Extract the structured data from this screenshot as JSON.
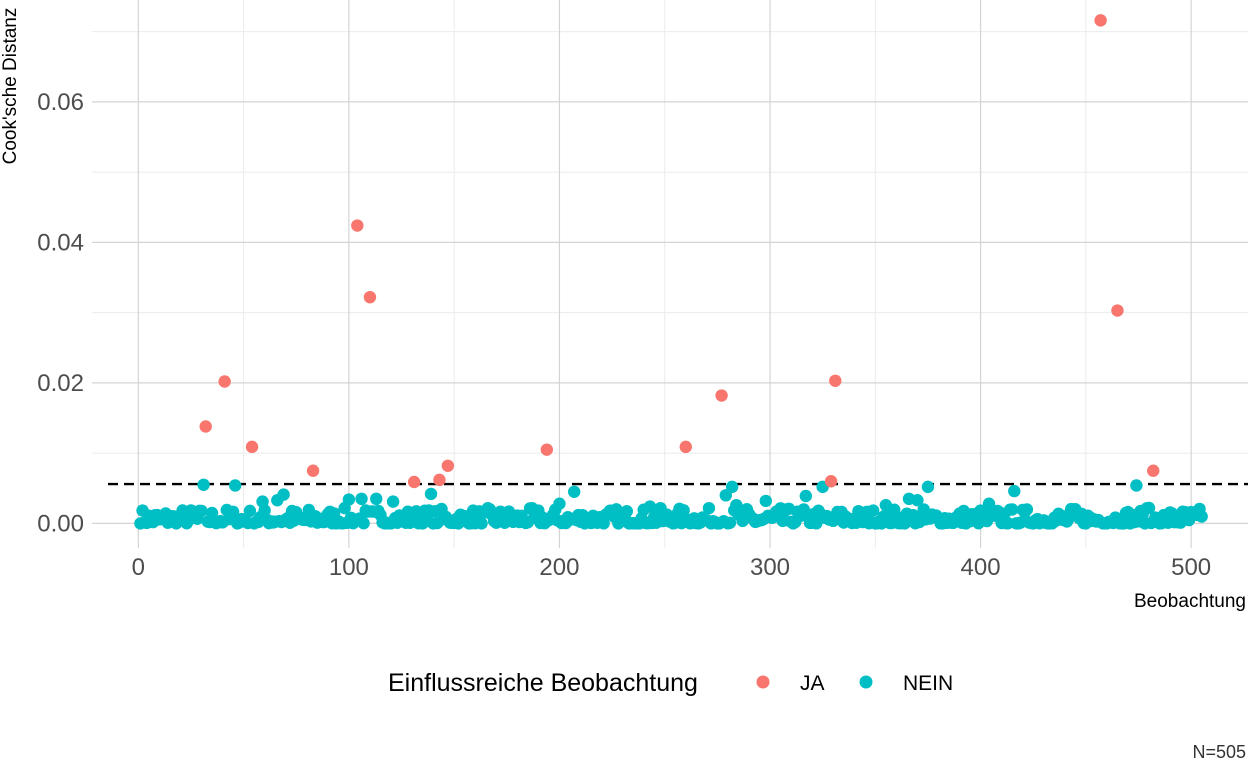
{
  "chart_data": {
    "type": "scatter",
    "xlabel": "Beobachtung",
    "ylabel": "Cook'sche Distanz",
    "xlim": [
      -22,
      527
    ],
    "ylim": [
      -0.0035,
      0.0745
    ],
    "x_ticks": [
      0,
      100,
      200,
      300,
      400,
      500
    ],
    "x_tick_labels": [
      "0",
      "100",
      "200",
      "300",
      "400",
      "500"
    ],
    "y_ticks": [
      0,
      0.02,
      0.04,
      0.06
    ],
    "y_tick_labels": [
      "0.00",
      "0.02",
      "0.04",
      "0.06"
    ],
    "grid": true,
    "threshold": 0.0056,
    "threshold_style": "dashed",
    "legend": {
      "title": "Einflussreiche Beobachtung",
      "placement": "bottom",
      "entries": [
        {
          "label": "JA",
          "color": "#F8766D"
        },
        {
          "label": "NEIN",
          "color": "#00BFC4"
        }
      ]
    },
    "caption": "N=505",
    "series": [
      {
        "name": "JA",
        "color": "#F8766D",
        "points": [
          [
            32,
            0.0138
          ],
          [
            41,
            0.0202
          ],
          [
            54,
            0.0109
          ],
          [
            83,
            0.0075
          ],
          [
            104,
            0.0424
          ],
          [
            110,
            0.0322
          ],
          [
            131,
            0.0059
          ],
          [
            143,
            0.0062
          ],
          [
            147,
            0.0082
          ],
          [
            194,
            0.0105
          ],
          [
            260,
            0.0109
          ],
          [
            277,
            0.0182
          ],
          [
            329,
            0.006
          ],
          [
            331,
            0.0203
          ],
          [
            457,
            0.0716
          ],
          [
            465,
            0.0303
          ],
          [
            482,
            0.0075
          ]
        ]
      },
      {
        "name": "NEIN",
        "color": "#00BFC4",
        "points": [
          [
            31,
            0.0055
          ],
          [
            46,
            0.0054
          ],
          [
            59,
            0.0031
          ],
          [
            66,
            0.0033
          ],
          [
            69,
            0.0041
          ],
          [
            100,
            0.0034
          ],
          [
            106,
            0.0035
          ],
          [
            113,
            0.0035
          ],
          [
            121,
            0.0031
          ],
          [
            139,
            0.0042
          ],
          [
            200,
            0.0028
          ],
          [
            207,
            0.0045
          ],
          [
            243,
            0.0024
          ],
          [
            279,
            0.004
          ],
          [
            282,
            0.0052
          ],
          [
            284,
            0.0026
          ],
          [
            298,
            0.0032
          ],
          [
            317,
            0.0039
          ],
          [
            325,
            0.0052
          ],
          [
            355,
            0.0026
          ],
          [
            366,
            0.0035
          ],
          [
            370,
            0.0033
          ],
          [
            375,
            0.0052
          ],
          [
            404,
            0.0028
          ],
          [
            416,
            0.0046
          ],
          [
            474,
            0.0054
          ],
          [
            480,
            0.0022
          ]
        ],
        "baseline": {
          "x_range": [
            1,
            505
          ],
          "y_range": [
            0.0,
            0.0022
          ],
          "description_values": "remaining observations with small Cook's distance near zero"
        }
      }
    ]
  }
}
